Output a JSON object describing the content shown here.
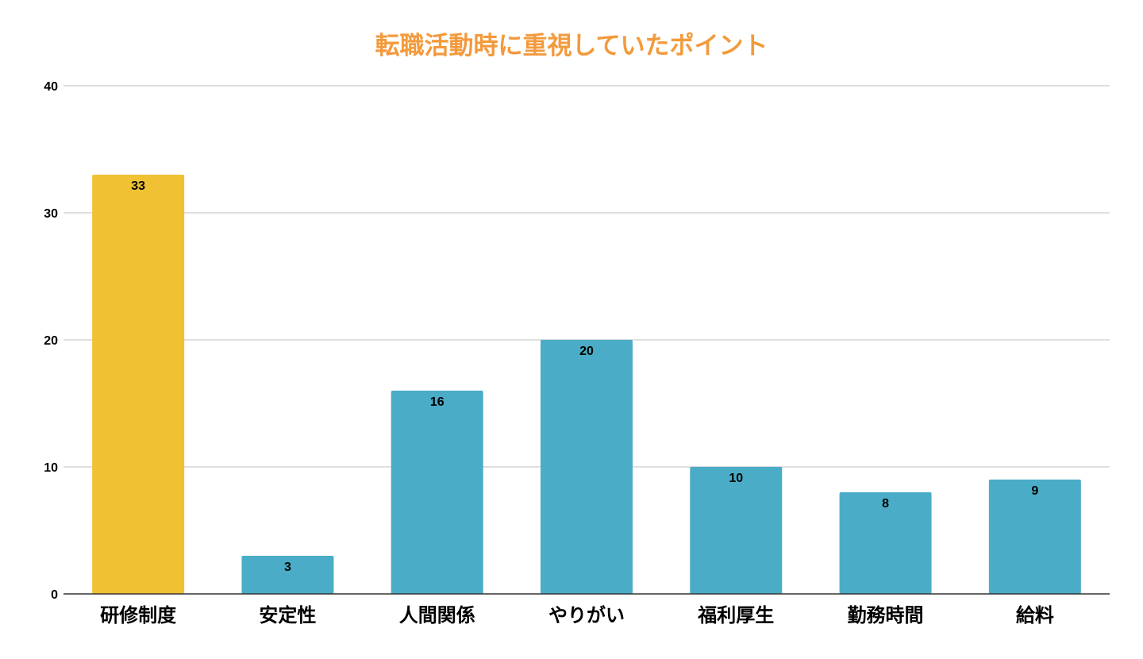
{
  "chart_data": {
    "type": "bar",
    "title": "転職活動時に重視していたポイント",
    "xlabel": "",
    "ylabel": "",
    "categories": [
      "研修制度",
      "安定性",
      "人間関係",
      "やりがい",
      "福利厚生",
      "勤務時間",
      "給料"
    ],
    "values": [
      33,
      3,
      16,
      20,
      10,
      8,
      9
    ],
    "bar_colors": [
      "#f0c132",
      "#4aacc6",
      "#4aacc6",
      "#4aacc6",
      "#4aacc6",
      "#4aacc6",
      "#4aacc6"
    ],
    "ylim": [
      0,
      40
    ],
    "yticks": [
      0,
      10,
      20,
      30,
      40
    ],
    "grid": true,
    "legend": "none",
    "data_labels": true
  },
  "colors": {
    "title": "#f39a3c",
    "highlight_bar": "#f0c132",
    "bar": "#4aacc6",
    "gridline": "#cccccc",
    "axis": "#333333"
  }
}
